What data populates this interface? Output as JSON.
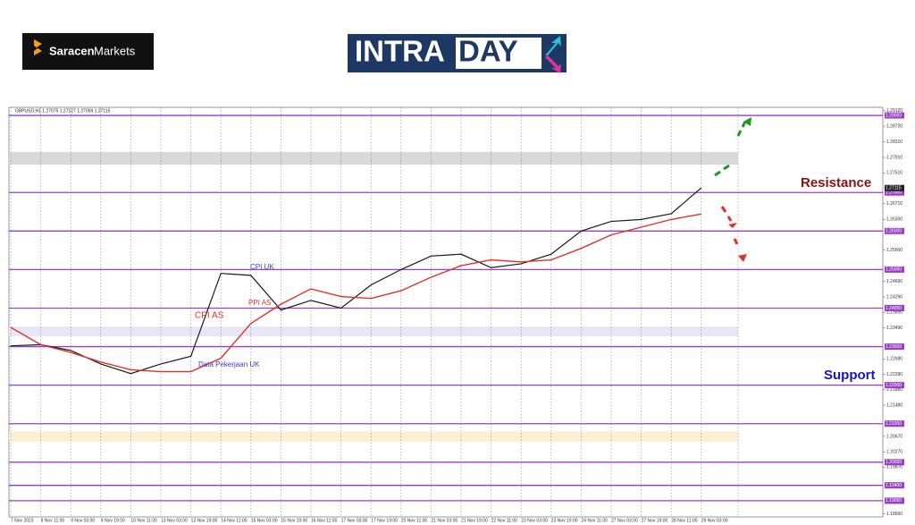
{
  "branding": {
    "company": [
      "Saracen",
      "Markets"
    ],
    "banner": [
      "INTRA",
      "DAY"
    ]
  },
  "chart_data": {
    "type": "line",
    "title": "GBPUSD,H1  1.27075 1.27127 1.27059 1.27115",
    "categories": [
      "7 Nov 2023",
      "8 Nov 11:00",
      "9 Nov 03:00",
      "9 Nov 19:00",
      "10 Nov 11:00",
      "13 Nov 03:00",
      "13 Nov 19:00",
      "14 Nov 11:00",
      "15 Nov 03:00",
      "15 Nov 19:00",
      "16 Nov 11:00",
      "17 Nov 03:00",
      "17 Nov 19:00",
      "20 Nov 11:00",
      "21 Nov 03:00",
      "21 Nov 19:00",
      "22 Nov 11:00",
      "23 Nov 03:00",
      "23 Nov 19:00",
      "24 Nov 11:00",
      "27 Nov 03:00",
      "27 Nov 19:00",
      "28 Nov 11:00",
      "29 Nov 03:00"
    ],
    "series": [
      {
        "name": "GBPUSD",
        "color": "#1a1a1a",
        "values": [
          1.2302,
          1.2305,
          1.229,
          1.2255,
          1.223,
          1.2255,
          1.2275,
          1.249,
          1.2485,
          1.2395,
          1.242,
          1.24,
          1.246,
          1.25,
          1.2535,
          1.254,
          1.2505,
          1.2515,
          1.254,
          1.26,
          1.2625,
          1.263,
          1.2645,
          1.2712
        ]
      },
      {
        "name": "MA",
        "color": "#e0312b",
        "values": [
          1.235,
          1.2305,
          1.2285,
          1.226,
          1.224,
          1.2235,
          1.2235,
          1.227,
          1.236,
          1.241,
          1.245,
          1.243,
          1.2425,
          1.2445,
          1.248,
          1.251,
          1.2525,
          1.252,
          1.2525,
          1.2555,
          1.259,
          1.261,
          1.263,
          1.2644
        ]
      }
    ],
    "ylim": [
      1.1858,
      1.2921
    ],
    "yticks": [
      {
        "value": 1.2912,
        "label": "1.29120"
      },
      {
        "value": 1.2872,
        "label": "1.28720"
      },
      {
        "value": 1.2831,
        "label": "1.28310"
      },
      {
        "value": 1.2791,
        "label": "1.27910"
      },
      {
        "value": 1.2751,
        "label": "1.27510"
      },
      {
        "value": 1.2671,
        "label": "1.26710"
      },
      {
        "value": 1.263,
        "label": "1.26300"
      },
      {
        "value": 1.255,
        "label": "1.25500"
      },
      {
        "value": 1.2469,
        "label": "1.24690"
      },
      {
        "value": 1.2429,
        "label": "1.24290"
      },
      {
        "value": 1.2389,
        "label": "1.23890"
      },
      {
        "value": 1.2349,
        "label": "1.23490"
      },
      {
        "value": 1.2268,
        "label": "1.22680"
      },
      {
        "value": 1.2228,
        "label": "1.22280"
      },
      {
        "value": 1.2188,
        "label": "1.21880"
      },
      {
        "value": 1.2148,
        "label": "1.21480"
      },
      {
        "value": 1.2067,
        "label": "1.20670"
      },
      {
        "value": 1.2027,
        "label": "1.20270"
      },
      {
        "value": 1.1987,
        "label": "1.19870"
      },
      {
        "value": 1.1866,
        "label": "1.18660"
      }
    ],
    "levels": [
      {
        "value": 1.29,
        "label": "1.29000"
      },
      {
        "value": 1.27,
        "label": "1.27000"
      },
      {
        "value": 1.26,
        "label": "1.26000"
      },
      {
        "value": 1.25,
        "label": "1.25000"
      },
      {
        "value": 1.24,
        "label": "1.24000"
      },
      {
        "value": 1.23,
        "label": "1.23000"
      },
      {
        "value": 1.22,
        "label": "1.22000"
      },
      {
        "value": 1.21,
        "label": "1.21000"
      },
      {
        "value": 1.2,
        "label": "1.20000"
      },
      {
        "value": 1.194,
        "label": "1.19400"
      },
      {
        "value": 1.19,
        "label": "1.19000"
      }
    ],
    "last_price": {
      "value": 1.27115,
      "label": "1.27115"
    },
    "zones": [
      {
        "range": [
          1.2772,
          1.2805
        ],
        "color": "#d9d9d9"
      },
      {
        "range": [
          1.2327,
          1.2352
        ],
        "color": "#e6e6f8"
      },
      {
        "range": [
          1.2053,
          1.208
        ],
        "color": "#fdeed8"
      }
    ],
    "annotations": [
      {
        "text": "CPI UK",
        "color": "#3a3ad0"
      },
      {
        "text": "PPI AS",
        "color": "#e0312b"
      },
      {
        "text": "CPI AS",
        "color": "#e0312b"
      },
      {
        "text": "Data Pekerjaan UK",
        "color": "#3a3ad0"
      },
      {
        "text": "Resistance",
        "color": "#8b1010"
      },
      {
        "text": "Support",
        "color": "#1414c8"
      }
    ],
    "grid": true
  }
}
